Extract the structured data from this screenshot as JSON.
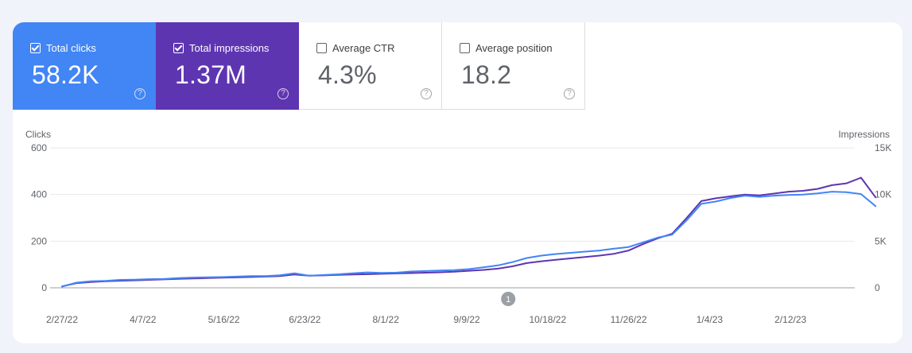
{
  "metrics": [
    {
      "label": "Total clicks",
      "value": "58.2K",
      "checked": true,
      "color": "#4285f4"
    },
    {
      "label": "Total impressions",
      "value": "1.37M",
      "checked": true,
      "color": "#5e35b1"
    },
    {
      "label": "Average CTR",
      "value": "4.3%",
      "checked": false
    },
    {
      "label": "Average position",
      "value": "18.2",
      "checked": false
    }
  ],
  "help_glyph": "?",
  "chart_data": {
    "type": "line",
    "left_axis_label": "Clicks",
    "right_axis_label": "Impressions",
    "left_ticks": [
      "0",
      "200",
      "400",
      "600"
    ],
    "right_ticks": [
      "0",
      "5K",
      "10K",
      "15K"
    ],
    "left_ylim": [
      0,
      600
    ],
    "right_ylim": [
      0,
      15000
    ],
    "grid": true,
    "x_start": "2022-02-27",
    "x_tick_labels": [
      "2/27/22",
      "4/7/22",
      "5/16/22",
      "6/23/22",
      "8/1/22",
      "9/9/22",
      "10/18/22",
      "11/26/22",
      "1/4/23",
      "2/12/23"
    ],
    "annotation": {
      "label": "1",
      "date": "2022-09-30"
    },
    "series": [
      {
        "name": "Clicks",
        "axis": "left",
        "color": "#4285f4",
        "points": [
          [
            "2022-02-27",
            5
          ],
          [
            "2022-03-06",
            22
          ],
          [
            "2022-03-13",
            28
          ],
          [
            "2022-03-20",
            30
          ],
          [
            "2022-03-27",
            34
          ],
          [
            "2022-04-03",
            35
          ],
          [
            "2022-04-10",
            37
          ],
          [
            "2022-04-17",
            38
          ],
          [
            "2022-04-24",
            42
          ],
          [
            "2022-05-01",
            44
          ],
          [
            "2022-05-08",
            45
          ],
          [
            "2022-05-15",
            46
          ],
          [
            "2022-05-22",
            48
          ],
          [
            "2022-05-29",
            50
          ],
          [
            "2022-06-05",
            50
          ],
          [
            "2022-06-12",
            54
          ],
          [
            "2022-06-19",
            62
          ],
          [
            "2022-06-26",
            52
          ],
          [
            "2022-07-03",
            55
          ],
          [
            "2022-07-10",
            58
          ],
          [
            "2022-07-17",
            62
          ],
          [
            "2022-07-24",
            66
          ],
          [
            "2022-07-31",
            64
          ],
          [
            "2022-08-07",
            65
          ],
          [
            "2022-08-14",
            70
          ],
          [
            "2022-08-21",
            72
          ],
          [
            "2022-08-28",
            74
          ],
          [
            "2022-09-04",
            76
          ],
          [
            "2022-09-11",
            80
          ],
          [
            "2022-09-18",
            88
          ],
          [
            "2022-09-25",
            96
          ],
          [
            "2022-10-02",
            110
          ],
          [
            "2022-10-09",
            128
          ],
          [
            "2022-10-16",
            138
          ],
          [
            "2022-10-23",
            145
          ],
          [
            "2022-10-30",
            150
          ],
          [
            "2022-11-06",
            155
          ],
          [
            "2022-11-13",
            160
          ],
          [
            "2022-11-20",
            168
          ],
          [
            "2022-11-27",
            175
          ],
          [
            "2022-12-04",
            195
          ],
          [
            "2022-12-11",
            215
          ],
          [
            "2022-12-18",
            228
          ],
          [
            "2022-12-25",
            290
          ],
          [
            "2023-01-01",
            360
          ],
          [
            "2023-01-08",
            370
          ],
          [
            "2023-01-15",
            385
          ],
          [
            "2023-01-22",
            395
          ],
          [
            "2023-01-29",
            390
          ],
          [
            "2023-02-05",
            395
          ],
          [
            "2023-02-12",
            398
          ],
          [
            "2023-02-19",
            400
          ],
          [
            "2023-02-26",
            405
          ],
          [
            "2023-03-05",
            412
          ],
          [
            "2023-03-12",
            410
          ],
          [
            "2023-03-19",
            402
          ],
          [
            "2023-03-26",
            350
          ]
        ]
      },
      {
        "name": "Impressions",
        "axis": "right",
        "color": "#5e35b1",
        "points": [
          [
            "2022-02-27",
            150
          ],
          [
            "2022-03-06",
            500
          ],
          [
            "2022-03-13",
            620
          ],
          [
            "2022-03-20",
            700
          ],
          [
            "2022-03-27",
            760
          ],
          [
            "2022-04-03",
            800
          ],
          [
            "2022-04-10",
            850
          ],
          [
            "2022-04-17",
            900
          ],
          [
            "2022-04-24",
            960
          ],
          [
            "2022-05-01",
            1000
          ],
          [
            "2022-05-08",
            1040
          ],
          [
            "2022-05-15",
            1080
          ],
          [
            "2022-05-22",
            1120
          ],
          [
            "2022-05-29",
            1160
          ],
          [
            "2022-06-05",
            1200
          ],
          [
            "2022-06-12",
            1260
          ],
          [
            "2022-06-19",
            1420
          ],
          [
            "2022-06-26",
            1300
          ],
          [
            "2022-07-03",
            1330
          ],
          [
            "2022-07-10",
            1380
          ],
          [
            "2022-07-17",
            1420
          ],
          [
            "2022-07-24",
            1460
          ],
          [
            "2022-07-31",
            1500
          ],
          [
            "2022-08-07",
            1540
          ],
          [
            "2022-08-14",
            1580
          ],
          [
            "2022-08-21",
            1620
          ],
          [
            "2022-08-28",
            1660
          ],
          [
            "2022-09-04",
            1720
          ],
          [
            "2022-09-11",
            1820
          ],
          [
            "2022-09-18",
            1920
          ],
          [
            "2022-09-25",
            2050
          ],
          [
            "2022-10-02",
            2300
          ],
          [
            "2022-10-09",
            2650
          ],
          [
            "2022-10-16",
            2850
          ],
          [
            "2022-10-23",
            3000
          ],
          [
            "2022-10-30",
            3150
          ],
          [
            "2022-11-06",
            3300
          ],
          [
            "2022-11-13",
            3450
          ],
          [
            "2022-11-20",
            3650
          ],
          [
            "2022-11-27",
            4000
          ],
          [
            "2022-12-04",
            4700
          ],
          [
            "2022-12-11",
            5300
          ],
          [
            "2022-12-18",
            5800
          ],
          [
            "2022-12-25",
            7500
          ],
          [
            "2023-01-01",
            9300
          ],
          [
            "2023-01-08",
            9600
          ],
          [
            "2023-01-15",
            9800
          ],
          [
            "2023-01-22",
            10000
          ],
          [
            "2023-01-29",
            9900
          ],
          [
            "2023-02-05",
            10100
          ],
          [
            "2023-02-12",
            10300
          ],
          [
            "2023-02-19",
            10400
          ],
          [
            "2023-02-26",
            10600
          ],
          [
            "2023-03-05",
            11000
          ],
          [
            "2023-03-12",
            11200
          ],
          [
            "2023-03-19",
            11800
          ],
          [
            "2023-03-26",
            9700
          ]
        ]
      }
    ]
  }
}
